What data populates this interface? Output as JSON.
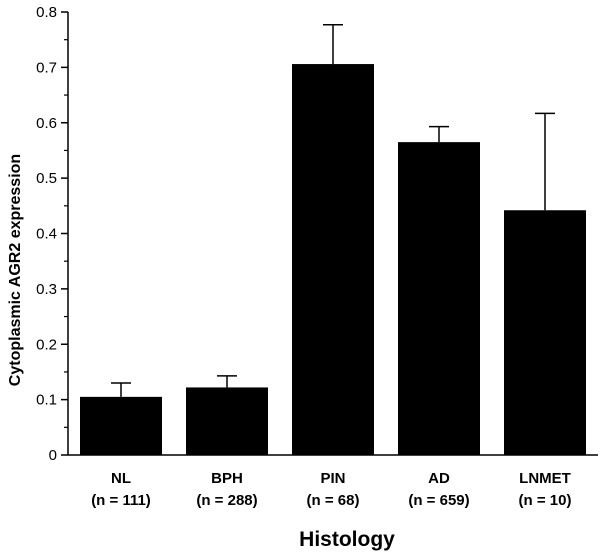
{
  "chart_data": {
    "type": "bar",
    "title": "",
    "xlabel": "Histology",
    "ylabel": "Cytoplasmic AGR2 expression",
    "categories": [
      "NL",
      "BPH",
      "PIN",
      "AD",
      "LNMET"
    ],
    "sublabels": [
      "(n = 111)",
      "(n = 288)",
      "(n = 68)",
      "(n = 659)",
      "(n = 10)"
    ],
    "values": [
      0.105,
      0.122,
      0.706,
      0.565,
      0.442
    ],
    "errors": [
      0.025,
      0.021,
      0.071,
      0.028,
      0.175
    ],
    "ylim": [
      0,
      0.8
    ],
    "yticks": [
      "0",
      "0.1",
      "0.2",
      "0.3",
      "0.4",
      "0.5",
      "0.6",
      "0.7",
      "0.8"
    ],
    "bar_color": "#000000",
    "grid": false,
    "legend": "none"
  }
}
